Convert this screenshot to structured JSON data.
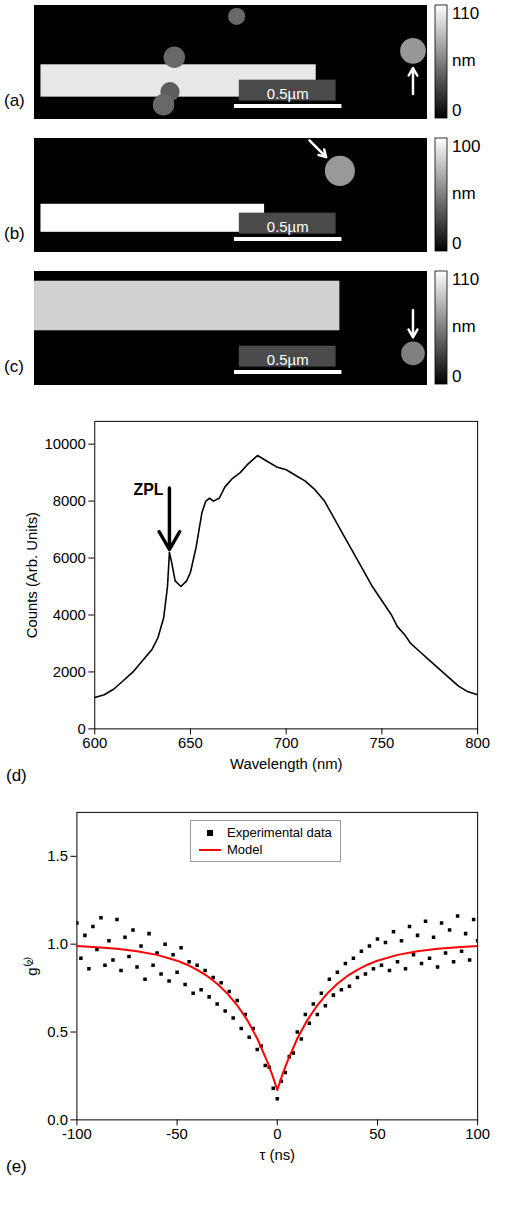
{
  "chart_data": [
    {
      "type": "image",
      "panel": "(a)",
      "xlim": [
        0,
        1.83
      ],
      "ylim": [
        0,
        0.53
      ],
      "tick_labels": false,
      "nanowire": {
        "x": [
          0.03,
          1.31
        ],
        "y": 0.35,
        "width": 0.15,
        "height_nm": 100
      },
      "particles": [
        {
          "x": 1.76,
          "y": 0.21,
          "diameter": 0.12,
          "height_nm": 65,
          "arrow": "up"
        },
        {
          "x": 0.94,
          "y": 0.05,
          "diameter": 0.08,
          "height_nm": 45
        },
        {
          "x": 0.65,
          "y": 0.24,
          "diameter": 0.1,
          "height_nm": 45
        },
        {
          "x": 0.63,
          "y": 0.4,
          "diameter": 0.09,
          "height_nm": 40
        },
        {
          "x": 0.6,
          "y": 0.46,
          "diameter": 0.1,
          "height_nm": 45
        }
      ],
      "scale_bar": {
        "value": 0.5,
        "label": "0.5µm"
      },
      "colorbar": {
        "range": [
          0,
          110
        ],
        "ticks": [
          0,
          110
        ],
        "unit": "nm"
      }
    },
    {
      "type": "image",
      "panel": "(b)",
      "xlim": [
        0,
        1.83
      ],
      "ylim": [
        0,
        0.53
      ],
      "tick_labels": false,
      "nanowire": {
        "x": [
          0.03,
          1.07
        ],
        "y": 0.37,
        "width": 0.13,
        "height_nm": 100
      },
      "particles": [
        {
          "x": 1.42,
          "y": 0.15,
          "diameter": 0.14,
          "height_nm": 60,
          "arrow": "down-right"
        }
      ],
      "scale_bar": {
        "value": 0.5,
        "label": "0.5µm"
      },
      "colorbar": {
        "range": [
          0,
          100
        ],
        "ticks": [
          0,
          100
        ],
        "unit": "nm"
      }
    },
    {
      "type": "image",
      "panel": "(c)",
      "xlim": [
        0,
        1.83
      ],
      "ylim": [
        0,
        0.53
      ],
      "tick_labels": false,
      "nanowire": {
        "x": [
          0,
          1.42
        ],
        "y": 0.16,
        "width": 0.23,
        "height_nm": 90
      },
      "particles": [
        {
          "x": 1.76,
          "y": 0.38,
          "diameter": 0.11,
          "height_nm": 55,
          "arrow": "down"
        }
      ],
      "scale_bar": {
        "value": 0.5,
        "label": "0.5µm"
      },
      "colorbar": {
        "range": [
          0,
          110
        ],
        "ticks": [
          0,
          110
        ],
        "unit": "nm"
      }
    },
    {
      "type": "line",
      "panel": "(d)",
      "x_label": "Wavelength (nm)",
      "y_label": "Counts (Arb. Units)",
      "color": "#000000",
      "xlim": [
        600,
        800
      ],
      "ylim": [
        0,
        10800
      ],
      "xticks": [
        600,
        650,
        700,
        750,
        800
      ],
      "yticks": [
        0,
        2000,
        4000,
        6000,
        8000,
        10000
      ],
      "x": [
        600,
        605,
        610,
        615,
        620,
        625,
        630,
        633,
        636,
        638,
        639,
        640,
        642,
        645,
        648,
        650,
        653,
        656,
        658,
        660,
        662,
        665,
        668,
        672,
        676,
        680,
        685,
        690,
        695,
        700,
        705,
        710,
        715,
        720,
        725,
        730,
        735,
        740,
        745,
        750,
        755,
        758,
        762,
        765,
        770,
        775,
        780,
        785,
        790,
        795,
        800
      ],
      "values": [
        1100,
        1200,
        1400,
        1700,
        2000,
        2400,
        2800,
        3200,
        3900,
        5000,
        6200,
        5900,
        5200,
        5000,
        5200,
        5500,
        6400,
        7600,
        8000,
        8100,
        8000,
        8100,
        8500,
        8800,
        9000,
        9300,
        9600,
        9400,
        9200,
        9100,
        8900,
        8700,
        8400,
        8000,
        7400,
        6800,
        6200,
        5600,
        5000,
        4500,
        4000,
        3600,
        3300,
        3000,
        2700,
        2400,
        2100,
        1800,
        1500,
        1300,
        1200
      ],
      "annotations": [
        {
          "text": "ZPL",
          "x": 639,
          "y": 6300
        }
      ]
    },
    {
      "type": "scatter",
      "panel": "(e)",
      "x_label": "τ (ns)",
      "y_label": "g⁽²⁾",
      "legend": "top",
      "xlim": [
        -100,
        100
      ],
      "ylim": [
        0,
        1.75
      ],
      "xticks": [
        -100,
        -50,
        0,
        50,
        100
      ],
      "yticks": [
        {
          "value": 0,
          "label": "0.0"
        },
        {
          "value": 0.5,
          "label": "0.5"
        },
        {
          "value": 1,
          "label": "1.0"
        },
        {
          "value": 1.5,
          "label": "1.5"
        }
      ],
      "series": [
        {
          "name": "Experimental data",
          "type": "scatter",
          "color": "#000000",
          "marker": "square",
          "x": [
            -100,
            -98,
            -96,
            -94,
            -92,
            -90,
            -88,
            -86,
            -84,
            -82,
            -80,
            -78,
            -76,
            -74,
            -72,
            -70,
            -68,
            -66,
            -64,
            -62,
            -60,
            -58,
            -56,
            -54,
            -52,
            -50,
            -48,
            -46,
            -44,
            -42,
            -40,
            -38,
            -36,
            -34,
            -32,
            -30,
            -28,
            -26,
            -24,
            -22,
            -20,
            -18,
            -16,
            -14,
            -12,
            -10,
            -8,
            -6,
            -4,
            -2,
            0,
            2,
            4,
            6,
            8,
            10,
            12,
            14,
            16,
            18,
            20,
            22,
            24,
            26,
            28,
            30,
            32,
            34,
            36,
            38,
            40,
            42,
            44,
            46,
            48,
            50,
            52,
            54,
            56,
            58,
            60,
            62,
            64,
            66,
            68,
            70,
            72,
            74,
            76,
            78,
            80,
            82,
            84,
            86,
            88,
            90,
            92,
            94,
            96,
            98,
            100
          ],
          "values": [
            1.12,
            0.92,
            1.05,
            0.86,
            1.1,
            0.97,
            1.15,
            0.88,
            1.02,
            0.91,
            1.14,
            0.85,
            1.04,
            0.93,
            1.08,
            0.87,
            0.99,
            0.8,
            1.06,
            0.88,
            0.95,
            0.83,
            1.0,
            0.79,
            0.94,
            0.84,
            0.98,
            0.77,
            0.9,
            0.72,
            0.88,
            0.74,
            0.85,
            0.7,
            0.81,
            0.66,
            0.78,
            0.62,
            0.73,
            0.58,
            0.68,
            0.52,
            0.6,
            0.47,
            0.52,
            0.4,
            0.42,
            0.31,
            0.3,
            0.18,
            0.12,
            0.22,
            0.27,
            0.36,
            0.38,
            0.5,
            0.46,
            0.6,
            0.55,
            0.66,
            0.6,
            0.72,
            0.65,
            0.8,
            0.71,
            0.84,
            0.74,
            0.89,
            0.76,
            0.92,
            0.81,
            0.96,
            0.83,
            0.99,
            0.86,
            1.03,
            0.88,
            1.01,
            0.85,
            1.07,
            0.9,
            1.02,
            0.86,
            1.1,
            0.94,
            1.05,
            0.89,
            1.13,
            0.92,
            1.04,
            0.87,
            1.12,
            0.95,
            1.08,
            0.9,
            1.16,
            0.96,
            1.06,
            0.91,
            1.14,
            1.02
          ]
        },
        {
          "name": "Model",
          "type": "line",
          "color": "#ff0000",
          "x": [
            -100,
            -90,
            -80,
            -70,
            -60,
            -50,
            -45,
            -40,
            -35,
            -30,
            -25,
            -20,
            -15,
            -10,
            -5,
            -2.5,
            0,
            2.5,
            5,
            10,
            15,
            20,
            25,
            30,
            35,
            40,
            45,
            50,
            60,
            70,
            80,
            90,
            100
          ],
          "values": [
            0.989,
            0.983,
            0.974,
            0.96,
            0.939,
            0.906,
            0.883,
            0.854,
            0.819,
            0.775,
            0.72,
            0.652,
            0.568,
            0.463,
            0.332,
            0.256,
            0.17,
            0.256,
            0.332,
            0.463,
            0.568,
            0.652,
            0.72,
            0.775,
            0.819,
            0.854,
            0.883,
            0.906,
            0.939,
            0.96,
            0.974,
            0.983,
            0.989
          ]
        }
      ]
    }
  ]
}
